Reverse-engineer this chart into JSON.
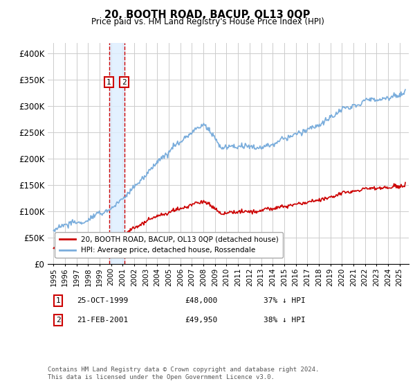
{
  "title": "20, BOOTH ROAD, BACUP, OL13 0QP",
  "subtitle": "Price paid vs. HM Land Registry's House Price Index (HPI)",
  "ylabel_ticks": [
    "£0",
    "£50K",
    "£100K",
    "£150K",
    "£200K",
    "£250K",
    "£300K",
    "£350K",
    "£400K"
  ],
  "ytick_values": [
    0,
    50000,
    100000,
    150000,
    200000,
    250000,
    300000,
    350000,
    400000
  ],
  "ylim": [
    0,
    420000
  ],
  "xlim_start": 1994.5,
  "xlim_end": 2025.8,
  "legend_line1": "20, BOOTH ROAD, BACUP, OL13 0QP (detached house)",
  "legend_line2": "HPI: Average price, detached house, Rossendale",
  "sale1_date": "25-OCT-1999",
  "sale1_price": "£48,000",
  "sale1_hpi": "37% ↓ HPI",
  "sale1_label": "1",
  "sale2_date": "21-FEB-2001",
  "sale2_price": "£49,950",
  "sale2_hpi": "38% ↓ HPI",
  "sale2_label": "2",
  "footnote": "Contains HM Land Registry data © Crown copyright and database right 2024.\nThis data is licensed under the Open Government Licence v3.0.",
  "hpi_color": "#7aaddc",
  "price_color": "#cc0000",
  "sale_marker_color": "#cc0000",
  "vline_color": "#cc0000",
  "vshade_color": "#ddeeff",
  "grid_color": "#cccccc",
  "bg_color": "#ffffff",
  "sale1_x": 1999.81,
  "sale2_x": 2001.13
}
